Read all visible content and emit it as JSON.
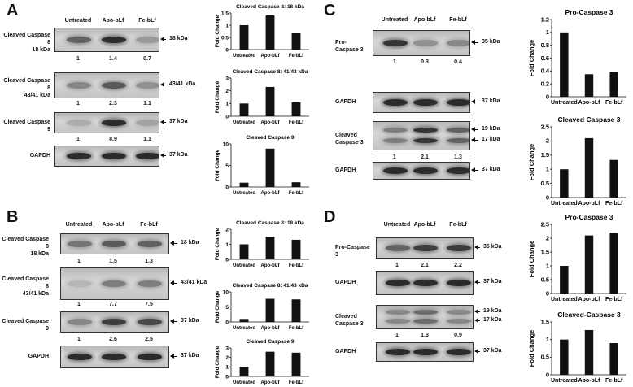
{
  "panels": [
    {
      "letter": "A",
      "headers": [
        "Untreated",
        "Apo-bLf",
        "Fe-bLf"
      ],
      "rows": [
        {
          "label": "Cleaved Caspase 8\n18 kDa",
          "kda": "18 kDa",
          "quant": [
            "1",
            "1.4",
            "0.7"
          ],
          "intensity": [
            0.55,
            0.85,
            0.25
          ]
        },
        {
          "label": "Cleaved Caspase 8\n43/41 kDa",
          "kda": "43/41 kDa",
          "quant": [
            "1",
            "2.3",
            "1.1"
          ],
          "intensity": [
            0.35,
            0.6,
            0.3
          ]
        },
        {
          "label": "Cleaved Caspase 9",
          "kda": "37 kDa",
          "quant": [
            "1",
            "8.9",
            "1.1"
          ],
          "intensity": [
            0.15,
            0.85,
            0.2
          ]
        },
        {
          "label": "GAPDH",
          "kda": "37 kDa",
          "quant": [],
          "intensity": [
            0.85,
            0.85,
            0.85
          ]
        }
      ]
    },
    {
      "letter": "B",
      "headers": [
        "Untreated",
        "Apo-bLf",
        "Fe-bLf"
      ],
      "rows": [
        {
          "label": "Cleaved Caspase 8\n18 kDa",
          "kda": "18 kDa",
          "quant": [
            "1",
            "1.5",
            "1.3"
          ],
          "intensity": [
            0.45,
            0.6,
            0.55
          ]
        },
        {
          "label": "Cleaved Caspase 8\n43/41 kDa",
          "kda": "43/41 kDa",
          "quant": [
            "1",
            "7.7",
            "7.5"
          ],
          "intensity": [
            0.1,
            0.4,
            0.4
          ]
        },
        {
          "label": "Cleaved Caspase 9",
          "kda": "37 kDa",
          "quant": [
            "1",
            "2.6",
            "2.5"
          ],
          "intensity": [
            0.35,
            0.75,
            0.7
          ]
        },
        {
          "label": "GAPDH",
          "kda": "37 kDa",
          "quant": [],
          "intensity": [
            0.85,
            0.85,
            0.85
          ]
        }
      ]
    },
    {
      "letter": "C",
      "headers": [
        "Untreated",
        "Apo-bLf",
        "Fe-bLf"
      ],
      "rows": [
        {
          "label": "Pro-Caspase 3",
          "kda": "35 kDa",
          "quant": [
            "1",
            "0.3",
            "0.4"
          ],
          "intensity": [
            0.8,
            0.3,
            0.35
          ]
        },
        {
          "label": "GAPDH",
          "kda": "37 kDa",
          "quant": [],
          "intensity": [
            0.85,
            0.85,
            0.85
          ]
        },
        {
          "label": "Cleaved Caspase 3",
          "kda": "19 kDa",
          "kda2": "17 kDa",
          "quant": [
            "1",
            "2.1",
            "1.3"
          ],
          "intensity": [
            0.4,
            0.8,
            0.55
          ]
        },
        {
          "label": "GAPDH",
          "kda": "37 kDa",
          "quant": [],
          "intensity": [
            0.85,
            0.85,
            0.85
          ]
        }
      ]
    },
    {
      "letter": "D",
      "headers": [
        "Untreated",
        "Apo-bLf",
        "Fe-bLf"
      ],
      "rows": [
        {
          "label": "Pro-Caspase 3",
          "kda": "35 kDa",
          "quant": [
            "1",
            "2.1",
            "2.2"
          ],
          "intensity": [
            0.55,
            0.75,
            0.75
          ]
        },
        {
          "label": "GAPDH",
          "kda": "37 kDa",
          "quant": [],
          "intensity": [
            0.85,
            0.85,
            0.85
          ]
        },
        {
          "label": "Cleaved Caspase 3",
          "kda": "19 kDa",
          "kda2": "17 kDa",
          "quant": [
            "1",
            "1.3",
            "0.9"
          ],
          "intensity": [
            0.35,
            0.5,
            0.35
          ]
        },
        {
          "label": "GAPDH",
          "kda": "37 kDa",
          "quant": [],
          "intensity": [
            0.85,
            0.85,
            0.85
          ]
        }
      ]
    }
  ],
  "chart_data": [
    {
      "type": "bar",
      "title": "Cleaved Caspase 8: 18 kDa",
      "categories": [
        "Untreated",
        "Apo-bLf",
        "Fe-bLf"
      ],
      "values": [
        1,
        1.4,
        0.7
      ],
      "ylabel": "Fold Change",
      "ylim": [
        0,
        1.5
      ],
      "yticks": [
        "0",
        "0.5",
        "1",
        "1.5"
      ]
    },
    {
      "type": "bar",
      "title": "Cleaved Caspase 8: 41/43 kDa",
      "categories": [
        "Untreated",
        "Apo-bLf",
        "Fe-bLf"
      ],
      "values": [
        1,
        2.3,
        1.1
      ],
      "ylabel": "Fold Change",
      "ylim": [
        0,
        3
      ],
      "yticks": [
        "0",
        "1",
        "2",
        "3"
      ]
    },
    {
      "type": "bar",
      "title": "Cleaved Caspase 9",
      "categories": [
        "Untreated",
        "Apo-bLf",
        "Fe-bLf"
      ],
      "values": [
        1,
        8.9,
        1.1
      ],
      "ylabel": "Fold Change",
      "ylim": [
        0,
        10
      ],
      "yticks": [
        "0",
        "5",
        "10"
      ]
    },
    {
      "type": "bar",
      "title": "Cleaved Caspase 8: 18 kDa",
      "categories": [
        "Untreated",
        "Apo-bLf",
        "Fe-bLf"
      ],
      "values": [
        1,
        1.5,
        1.3
      ],
      "ylabel": "Fold Change",
      "ylim": [
        0,
        2
      ],
      "yticks": [
        "0",
        "1",
        "2"
      ]
    },
    {
      "type": "bar",
      "title": "Cleaved Caspase 8: 41/43 kDa",
      "categories": [
        "Untreated",
        "Apo-bLf",
        "Fe-bLf"
      ],
      "values": [
        1,
        7.7,
        7.5
      ],
      "ylabel": "Fold Change",
      "ylim": [
        0,
        10
      ],
      "yticks": [
        "0",
        "5",
        "10"
      ]
    },
    {
      "type": "bar",
      "title": "Cleaved Caspase 9",
      "categories": [
        "Untreated",
        "Apo-bLf",
        "Fe-bLf"
      ],
      "values": [
        1,
        2.6,
        2.5
      ],
      "ylabel": "Fold Change",
      "ylim": [
        0,
        3
      ],
      "yticks": [
        "0",
        "1",
        "2",
        "3"
      ]
    },
    {
      "type": "bar",
      "title": "Pro-Caspase 3",
      "categories": [
        "Untreated",
        "Apo-bLf",
        "Fe-bLf"
      ],
      "values": [
        1,
        0.35,
        0.38
      ],
      "ylabel": "Fold Change",
      "ylim": [
        0,
        1.2
      ],
      "yticks": [
        "0",
        "0.2",
        "0.4",
        "0.6",
        "0.8",
        "1",
        "1.2"
      ]
    },
    {
      "type": "bar",
      "title": "Cleaved Caspase 3",
      "categories": [
        "Untreated",
        "Apo-bLf",
        "Fe-bLf"
      ],
      "values": [
        1,
        2.1,
        1.33
      ],
      "ylabel": "Fold Change",
      "ylim": [
        0,
        2.5
      ],
      "yticks": [
        "0",
        "0.5",
        "1",
        "1.5",
        "2",
        "2.5"
      ]
    },
    {
      "type": "bar",
      "title": "Pro-Caspase 3",
      "categories": [
        "Untreated",
        "Apo-bLf",
        "Fe-bLf"
      ],
      "values": [
        1,
        2.1,
        2.2
      ],
      "ylabel": "Fold Change",
      "ylim": [
        0,
        2.5
      ],
      "yticks": [
        "0",
        "0.5",
        "1",
        "1.5",
        "2",
        "2.5"
      ]
    },
    {
      "type": "bar",
      "title": "Cleaved-Caspase 3",
      "categories": [
        "Untreated",
        "Apo-bLf",
        "Fe-bLf"
      ],
      "values": [
        1,
        1.27,
        0.9
      ],
      "ylabel": "Fold Change",
      "ylim": [
        0,
        1.5
      ],
      "yticks": [
        "0",
        "0.5",
        "1",
        "1.5"
      ]
    }
  ]
}
